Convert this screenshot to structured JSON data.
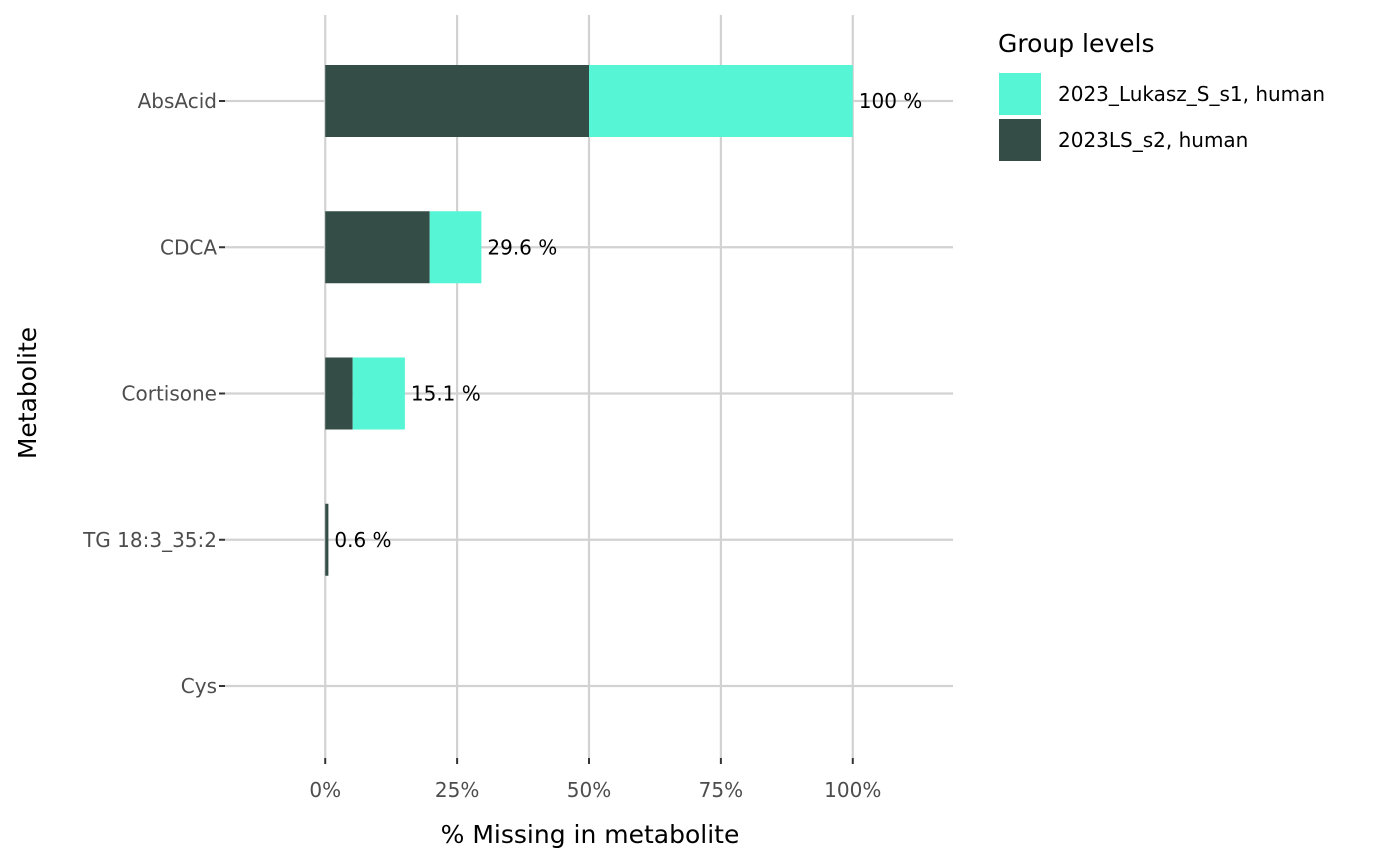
{
  "chart_data": {
    "type": "bar",
    "orientation": "horizontal",
    "stacked": true,
    "categories": [
      "AbsAcid",
      "CDCA",
      "Cortisone",
      "TG 18:3_35:2",
      "Cys"
    ],
    "series": [
      {
        "name": "2023LS_s2, human",
        "color": "#344e47",
        "values": [
          50,
          19.8,
          5.2,
          0.6,
          0
        ]
      },
      {
        "name": "2023_Lukasz_S_s1, human",
        "color": "#55f5d5",
        "values": [
          50,
          9.8,
          9.9,
          0,
          0
        ]
      }
    ],
    "totals_labels": [
      "100 %",
      "29.6 %",
      "15.1 %",
      "0.6 %",
      ""
    ],
    "xlabel": "% Missing in metabolite",
    "ylabel": "Metabolite",
    "xlim": [
      -19,
      119
    ],
    "xticks": [
      0,
      25,
      50,
      75,
      100
    ],
    "xtick_labels": [
      "0%",
      "25%",
      "50%",
      "75%",
      "100%"
    ],
    "grid": true,
    "legend": {
      "title": "Group levels",
      "placement": "right",
      "entries": [
        {
          "name": "2023_Lukasz_S_s1, human",
          "color": "#55f5d5"
        },
        {
          "name": "2023LS_s2, human",
          "color": "#344e47"
        }
      ]
    }
  }
}
